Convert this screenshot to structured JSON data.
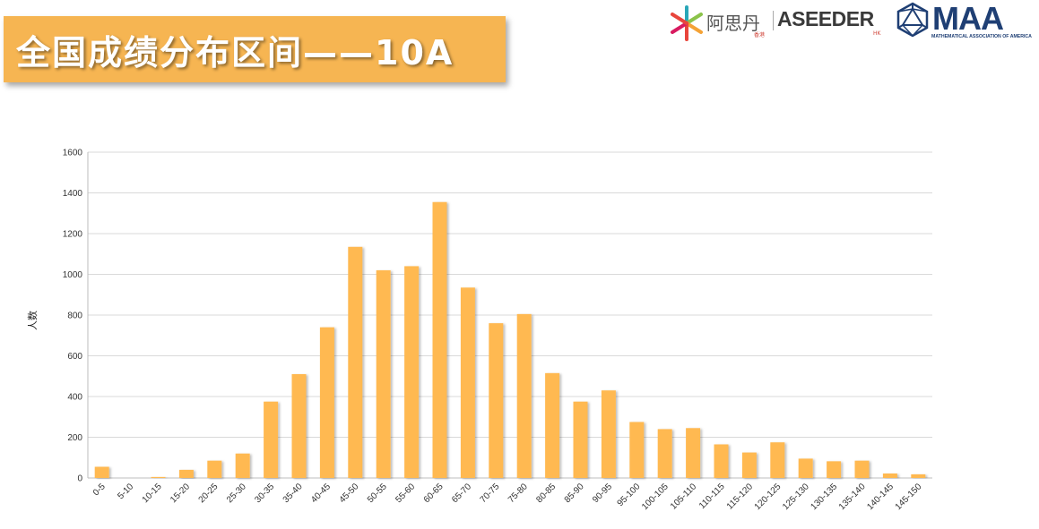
{
  "header": {
    "title": "全国成绩分布区间——10A"
  },
  "logos": {
    "asi_name": "阿思丹",
    "asi_sub": "香港",
    "aseeder": "ASEEDER",
    "aseeder_sub": "HK",
    "maa": "MAA",
    "maa_sub": "MATHEMATICAL ASSOCIATION OF AMERICA"
  },
  "colors": {
    "bar": "#ffb951",
    "banner": "#f6b552",
    "grid": "#d9d9d9"
  },
  "chart_data": {
    "type": "bar",
    "ylabel": "人数",
    "xlabel": "",
    "ylim": [
      0,
      1600
    ],
    "yticks": [
      0,
      200,
      400,
      600,
      800,
      1000,
      1200,
      1400,
      1600
    ],
    "grid": true,
    "categories": [
      "0-5",
      "5-10",
      "10-15",
      "15-20",
      "20-25",
      "25-30",
      "30-35",
      "35-40",
      "40-45",
      "45-50",
      "50-55",
      "55-60",
      "60-65",
      "65-70",
      "70-75",
      "75-80",
      "80-85",
      "85-90",
      "90-95",
      "95-100",
      "100-105",
      "105-110",
      "110-115",
      "115-120",
      "120-125",
      "125-130",
      "130-135",
      "135-140",
      "140-145",
      "145-150"
    ],
    "values": [
      55,
      0,
      5,
      40,
      85,
      120,
      375,
      510,
      740,
      1135,
      1020,
      1040,
      1355,
      935,
      760,
      805,
      515,
      375,
      430,
      275,
      240,
      245,
      165,
      125,
      175,
      95,
      82,
      85,
      22,
      18
    ]
  }
}
